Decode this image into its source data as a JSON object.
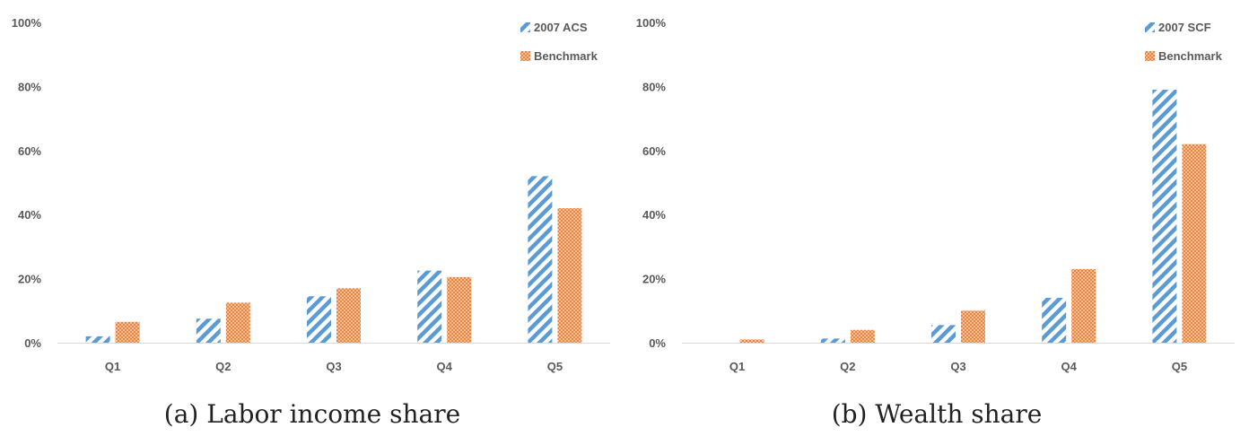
{
  "colors": {
    "series_a": "#5b9bd5",
    "series_b": "#ed7d31",
    "axis": "#d9d9d9",
    "text": "#595959"
  },
  "chart_data": [
    {
      "type": "bar",
      "caption": "(a) Labor income share",
      "categories": [
        "Q1",
        "Q2",
        "Q3",
        "Q4",
        "Q5"
      ],
      "series": [
        {
          "name": "2007 ACS",
          "values": [
            2,
            7.5,
            14.5,
            22.5,
            52
          ]
        },
        {
          "name": "Benchmark",
          "values": [
            6.5,
            12.5,
            17,
            20.5,
            42
          ]
        }
      ],
      "y_ticks": [
        "0%",
        "20%",
        "40%",
        "60%",
        "80%",
        "100%"
      ],
      "ylim": [
        0,
        100
      ],
      "legend": "top-right",
      "grid": false
    },
    {
      "type": "bar",
      "caption": "(b) Wealth share",
      "categories": [
        "Q1",
        "Q2",
        "Q3",
        "Q4",
        "Q5"
      ],
      "series": [
        {
          "name": "2007 SCF",
          "values": [
            0,
            1.3,
            5.5,
            14,
            79
          ]
        },
        {
          "name": "Benchmark",
          "values": [
            1,
            4,
            10,
            23,
            62
          ]
        }
      ],
      "y_ticks": [
        "0%",
        "20%",
        "40%",
        "60%",
        "80%",
        "100%"
      ],
      "ylim": [
        0,
        100
      ],
      "legend": "top-right",
      "grid": false
    }
  ]
}
